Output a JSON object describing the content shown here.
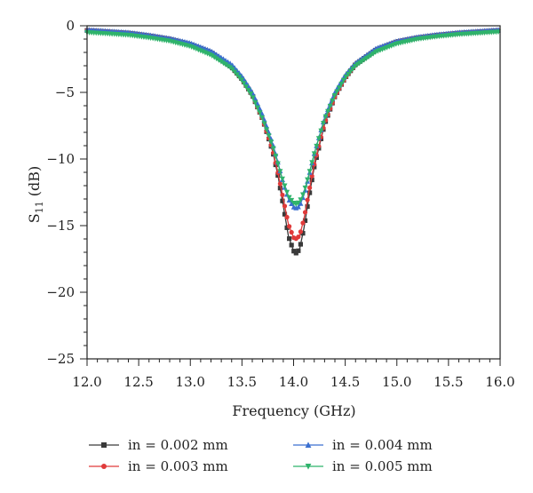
{
  "chart_data": {
    "type": "line",
    "title": "",
    "xlabel": "Frequency (GHz)",
    "ylabel_main": "S",
    "ylabel_sub": "11",
    "ylabel_unit": " (dB)",
    "xlim": [
      12.0,
      16.0
    ],
    "ylim": [
      -25,
      0
    ],
    "x_ticks": [
      "12.0",
      "12.5",
      "13.0",
      "13.5",
      "14.0",
      "14.5",
      "15.0",
      "15.5",
      "16.0"
    ],
    "y_ticks": [
      "0",
      "−5",
      "−10",
      "−15",
      "−20",
      "−25"
    ],
    "x_tick_values": [
      12.0,
      12.5,
      13.0,
      13.5,
      14.0,
      14.5,
      15.0,
      15.5,
      16.0
    ],
    "y_tick_values": [
      0,
      -5,
      -10,
      -15,
      -20,
      -25
    ],
    "x_minor_step": 0.1,
    "y_minor_step": 1,
    "grid": false,
    "legend_position": "bottom",
    "x": [
      12.0,
      12.2,
      12.4,
      12.6,
      12.8,
      13.0,
      13.2,
      13.4,
      13.5,
      13.6,
      13.7,
      13.8,
      13.85,
      13.9,
      13.95,
      14.0,
      14.03,
      14.06,
      14.1,
      14.15,
      14.2,
      14.3,
      14.4,
      14.5,
      14.6,
      14.8,
      15.0,
      15.2,
      15.4,
      15.6,
      15.8,
      16.0
    ],
    "series": [
      {
        "name": "in = 0.002 mm",
        "color": "#3a3a3a",
        "marker": "square",
        "values": [
          -0.35,
          -0.45,
          -0.55,
          -0.75,
          -1.0,
          -1.4,
          -2.0,
          -3.1,
          -4.0,
          -5.2,
          -7.0,
          -9.5,
          -11.3,
          -13.5,
          -15.8,
          -16.9,
          -17.1,
          -16.7,
          -15.2,
          -12.8,
          -10.6,
          -7.4,
          -5.3,
          -3.9,
          -2.9,
          -1.8,
          -1.2,
          -0.9,
          -0.7,
          -0.55,
          -0.45,
          -0.35
        ]
      },
      {
        "name": "in = 0.003 mm",
        "color": "#e03a3a",
        "marker": "circle",
        "values": [
          -0.35,
          -0.45,
          -0.55,
          -0.75,
          -1.0,
          -1.4,
          -2.0,
          -3.1,
          -4.0,
          -5.2,
          -7.0,
          -9.4,
          -11.1,
          -13.0,
          -14.9,
          -15.9,
          -16.0,
          -15.7,
          -14.5,
          -12.4,
          -10.4,
          -7.3,
          -5.3,
          -3.9,
          -2.9,
          -1.8,
          -1.2,
          -0.9,
          -0.7,
          -0.55,
          -0.45,
          -0.35
        ]
      },
      {
        "name": "in = 0.004 mm",
        "color": "#3a6fd0",
        "marker": "triangle-up",
        "values": [
          -0.3,
          -0.4,
          -0.5,
          -0.7,
          -0.95,
          -1.3,
          -1.9,
          -2.9,
          -3.8,
          -5.0,
          -6.7,
          -8.9,
          -10.3,
          -11.8,
          -13.0,
          -13.6,
          -13.7,
          -13.5,
          -12.7,
          -11.2,
          -9.6,
          -6.9,
          -5.0,
          -3.7,
          -2.8,
          -1.7,
          -1.15,
          -0.85,
          -0.65,
          -0.5,
          -0.4,
          -0.3
        ]
      },
      {
        "name": "in = 0.005 mm",
        "color": "#2fb36b",
        "marker": "triangle-down",
        "values": [
          -0.5,
          -0.6,
          -0.7,
          -0.9,
          -1.15,
          -1.55,
          -2.2,
          -3.2,
          -4.1,
          -5.3,
          -7.0,
          -9.1,
          -10.4,
          -11.7,
          -12.8,
          -13.3,
          -13.4,
          -13.2,
          -12.5,
          -11.1,
          -9.6,
          -7.0,
          -5.2,
          -3.9,
          -3.0,
          -1.95,
          -1.35,
          -1.0,
          -0.8,
          -0.65,
          -0.55,
          -0.45
        ]
      }
    ]
  }
}
